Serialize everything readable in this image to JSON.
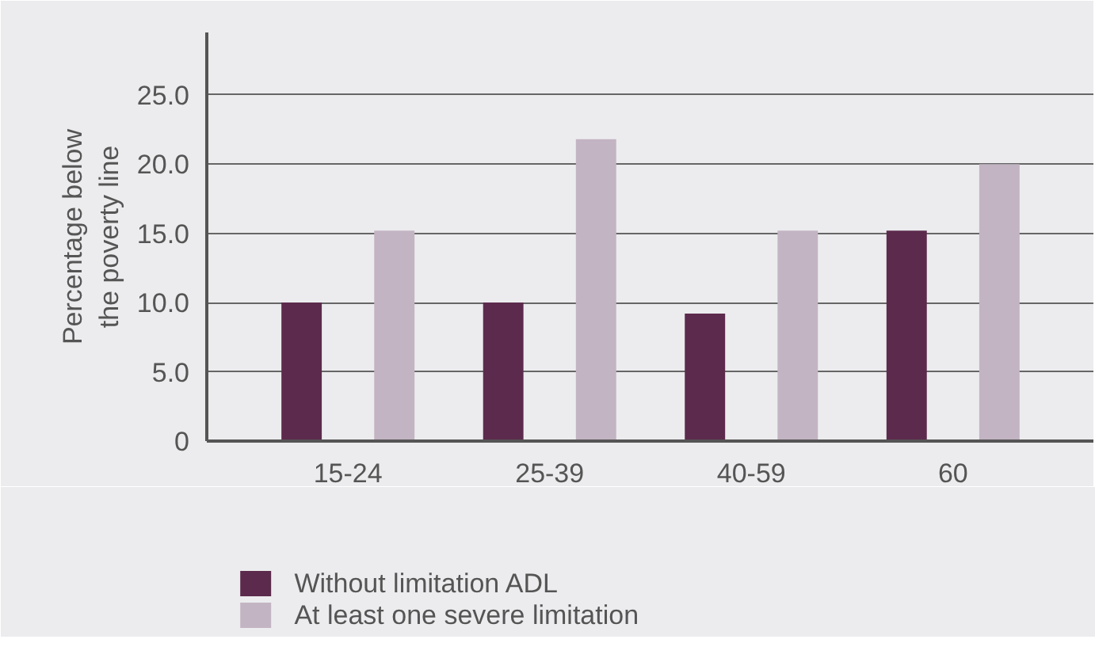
{
  "chart_data": {
    "type": "bar",
    "ylabel": "Percentage below\nthe poverty line",
    "categories": [
      "15-24",
      "25-39",
      "40-59",
      "60"
    ],
    "series": [
      {
        "name": "Without limitation ADL",
        "color": "#5c2a4c",
        "values": [
          10.0,
          10.0,
          9.2,
          15.2
        ]
      },
      {
        "name": "At least one severe limitation",
        "color": "#c3b4c3",
        "values": [
          15.2,
          21.8,
          15.2,
          20.0
        ]
      }
    ],
    "ylim": [
      0,
      29.5
    ],
    "yticks": [
      0,
      {
        "value": 5,
        "label": "5.0"
      },
      {
        "value": 10,
        "label": "10.0"
      },
      {
        "value": 15,
        "label": "15.0"
      },
      {
        "value": 20,
        "label": "20.0"
      },
      {
        "value": 25,
        "label": "25.0"
      }
    ],
    "grid": "y",
    "legend": "bottom left"
  }
}
